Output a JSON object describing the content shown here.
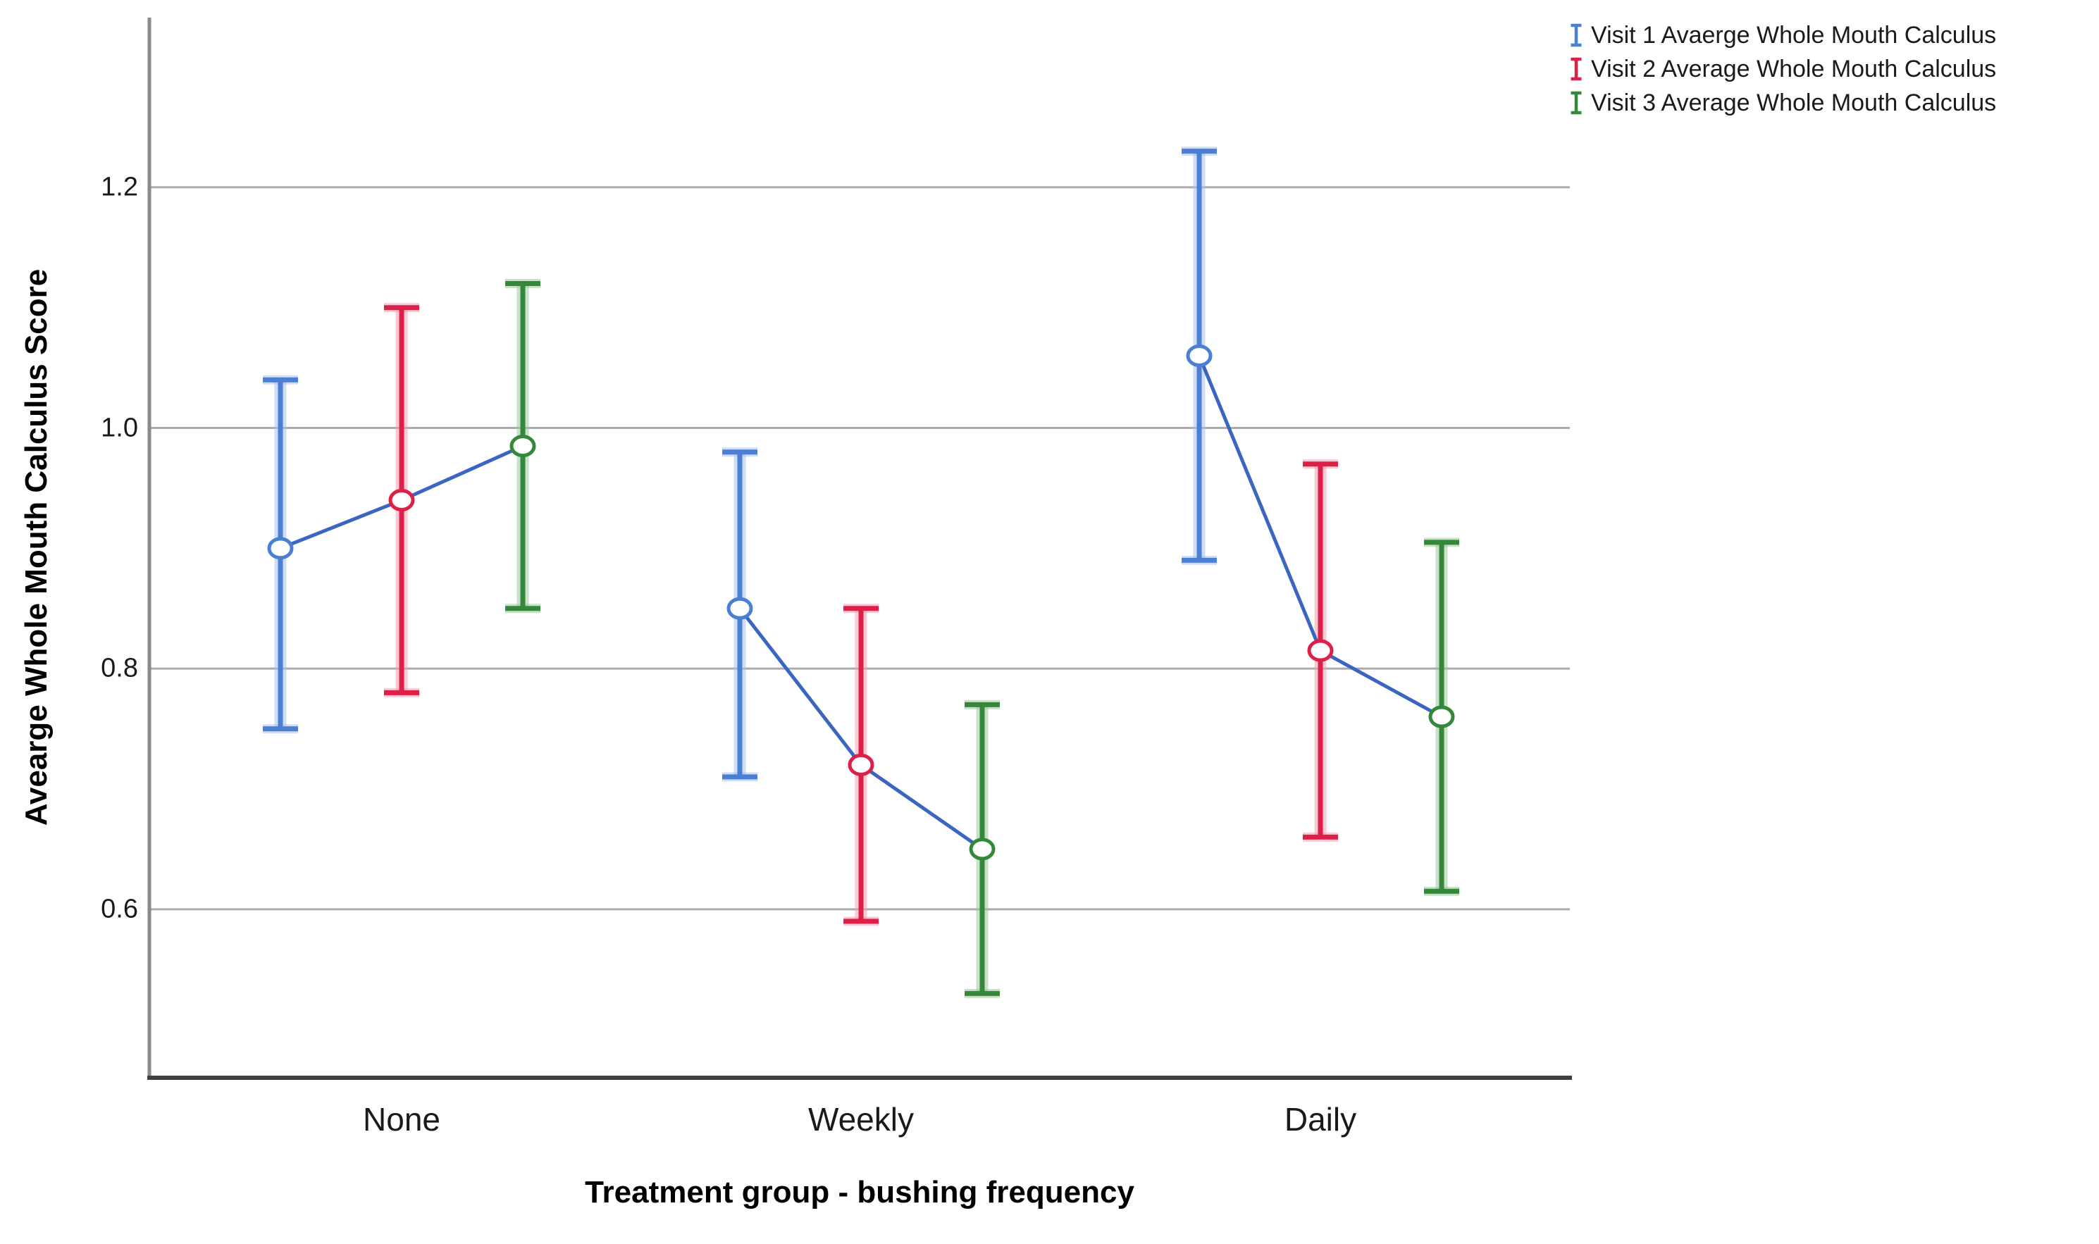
{
  "chart_data": {
    "type": "errorbar-line",
    "title": "",
    "xlabel": "Treatment group - bushing frequency",
    "ylabel": "Avearge Whole Mouth Calculus Score",
    "categories": [
      "None",
      "Weekly",
      "Daily"
    ],
    "yticks": [
      {
        "label": "1.2",
        "value": 1.2
      },
      {
        "label": "1.0",
        "value": 1.0
      },
      {
        "label": "0.8",
        "value": 0.8
      },
      {
        "label": "0.6",
        "value": 0.6
      }
    ],
    "ylim": [
      0.46,
      1.34
    ],
    "grid": "horizontal",
    "legend_position": "top-right",
    "marker": "open-circle",
    "connect_within_group": true,
    "series": [
      {
        "name": "Visit 1 Avaerge Whole Mouth Calculus",
        "color": "#4A7FD4",
        "halo": "#A8C2EE",
        "means": [
          0.9,
          0.85,
          1.06
        ],
        "ci_low": [
          0.75,
          0.71,
          0.89
        ],
        "ci_high": [
          1.04,
          0.98,
          1.23
        ]
      },
      {
        "name": "Visit 2 Average Whole Mouth Calculus",
        "color": "#DC2048",
        "halo": "#F29FB2",
        "means": [
          0.94,
          0.72,
          0.815
        ],
        "ci_low": [
          0.78,
          0.59,
          0.66
        ],
        "ci_high": [
          1.1,
          0.85,
          0.97
        ]
      },
      {
        "name": "Visit 3 Average Whole Mouth Calculus",
        "color": "#35883A",
        "halo": "#9CC89C",
        "means": [
          0.985,
          0.65,
          0.76
        ],
        "ci_low": [
          0.85,
          0.53,
          0.615
        ],
        "ci_high": [
          1.12,
          0.77,
          0.905
        ]
      }
    ],
    "style": {
      "connector_color": "#3A66C2",
      "grid_color": "#ABABAB",
      "left_axis_color": "#8A8A8A",
      "bottom_axis_color": "#3F3F3F",
      "background": "#ffffff"
    }
  }
}
